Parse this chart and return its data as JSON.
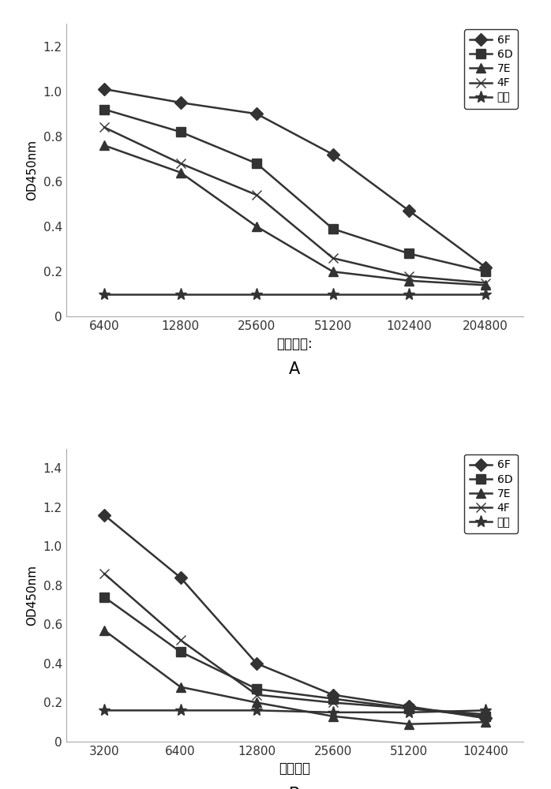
{
  "chart_A": {
    "x_labels": [
      "6400",
      "12800",
      "25600",
      "51200",
      "102400",
      "204800"
    ],
    "x_values": [
      6400,
      12800,
      25600,
      51200,
      102400,
      204800
    ],
    "series": {
      "6F": [
        1.01,
        0.95,
        0.9,
        0.72,
        0.47,
        0.22
      ],
      "6D": [
        0.92,
        0.82,
        0.68,
        0.39,
        0.28,
        0.2
      ],
      "7E": [
        0.76,
        0.64,
        0.4,
        0.2,
        0.16,
        0.14
      ],
      "4F": [
        0.84,
        0.68,
        0.54,
        0.26,
        0.18,
        0.15
      ],
      "阴性": [
        0.1,
        0.1,
        0.1,
        0.1,
        0.1,
        0.1
      ]
    },
    "markers": {
      "6F": "D",
      "6D": "s",
      "7E": "^",
      "4F": "x",
      "阴性": "*"
    },
    "ylabel": "OD450nm",
    "xlabel": "稀释倍数:",
    "ylim": [
      0,
      1.3
    ],
    "yticks": [
      0,
      0.2,
      0.4,
      0.6,
      0.8,
      1.0,
      1.2
    ],
    "label": "A"
  },
  "chart_B": {
    "x_labels": [
      "3200",
      "6400",
      "12800",
      "25600",
      "51200",
      "102400"
    ],
    "x_values": [
      3200,
      6400,
      12800,
      25600,
      51200,
      102400
    ],
    "series": {
      "6F": [
        1.16,
        0.84,
        0.4,
        0.24,
        0.18,
        0.12
      ],
      "6D": [
        0.74,
        0.46,
        0.27,
        0.22,
        0.17,
        0.13
      ],
      "7E": [
        0.57,
        0.28,
        0.2,
        0.13,
        0.09,
        0.1
      ],
      "4F": [
        0.86,
        0.52,
        0.24,
        0.2,
        0.17,
        0.14
      ],
      "阴性": [
        0.16,
        0.16,
        0.16,
        0.15,
        0.15,
        0.16
      ]
    },
    "markers": {
      "6F": "D",
      "6D": "s",
      "7E": "^",
      "4F": "x",
      "阴性": "*"
    },
    "ylabel": "OD450nm",
    "xlabel": "稀释倍数",
    "ylim": [
      0,
      1.5
    ],
    "yticks": [
      0,
      0.2,
      0.4,
      0.6,
      0.8,
      1.0,
      1.2,
      1.4
    ],
    "label": "B"
  },
  "line_color": "#333333",
  "bg_color": "#ffffff",
  "font_size": 11,
  "legend_font_size": 10,
  "label_font_size": 13
}
